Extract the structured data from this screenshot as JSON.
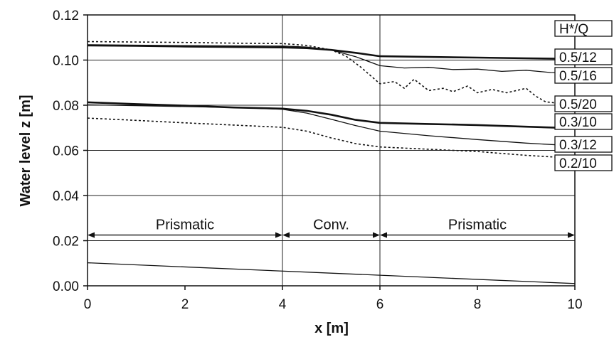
{
  "chart_data": {
    "type": "line",
    "title": "",
    "xlabel": "x [m]",
    "ylabel": "Water level z [m]",
    "xlim": [
      0,
      10
    ],
    "ylim": [
      0,
      0.12
    ],
    "x_ticks": [
      "0",
      "2",
      "4",
      "6",
      "8",
      "10"
    ],
    "y_ticks": [
      "0.00",
      "0.02",
      "0.04",
      "0.06",
      "0.08",
      "0.10",
      "0.12"
    ],
    "x_tick_values": [
      0,
      2,
      4,
      6,
      8,
      10
    ],
    "y_tick_values": [
      0,
      0.02,
      0.04,
      0.06,
      0.08,
      0.1,
      0.12
    ],
    "grid": "horizontal",
    "vertical_lines_x": [
      4,
      6
    ],
    "legend_title": "H*/Q",
    "legend_placement": "right",
    "regions": [
      {
        "label": "Prismatic",
        "x_start": 0,
        "x_end": 4,
        "y": 0.0225
      },
      {
        "label": "Conv.",
        "x_start": 4,
        "x_end": 6,
        "y": 0.0225
      },
      {
        "label": "Prismatic",
        "x_start": 6,
        "x_end": 10,
        "y": 0.0225
      }
    ],
    "series": [
      {
        "name": "0.5/12",
        "style": "solid-bold",
        "points": [
          [
            0,
            0.1065
          ],
          [
            1,
            0.1063
          ],
          [
            2,
            0.106
          ],
          [
            3,
            0.1058
          ],
          [
            4,
            0.1056
          ],
          [
            4.5,
            0.1053
          ],
          [
            5,
            0.1045
          ],
          [
            5.5,
            0.1032
          ],
          [
            6,
            0.1017
          ],
          [
            7,
            0.1014
          ],
          [
            8,
            0.1011
          ],
          [
            9,
            0.1008
          ],
          [
            10,
            0.1005
          ]
        ]
      },
      {
        "name": "0.5/16",
        "style": "solid",
        "points": [
          [
            0,
            0.1068
          ],
          [
            1,
            0.1066
          ],
          [
            2,
            0.1064
          ],
          [
            3,
            0.1063
          ],
          [
            4,
            0.1062
          ],
          [
            4.5,
            0.1058
          ],
          [
            5,
            0.1045
          ],
          [
            5.5,
            0.1015
          ],
          [
            6,
            0.0975
          ],
          [
            6.5,
            0.0965
          ],
          [
            7,
            0.0968
          ],
          [
            7.5,
            0.0958
          ],
          [
            8,
            0.096
          ],
          [
            8.5,
            0.095
          ],
          [
            9,
            0.0955
          ],
          [
            9.5,
            0.0945
          ],
          [
            10,
            0.0943
          ]
        ]
      },
      {
        "name": "0.5/20",
        "style": "dashed",
        "points": [
          [
            0,
            0.1082
          ],
          [
            1,
            0.108
          ],
          [
            2,
            0.1078
          ],
          [
            3,
            0.1075
          ],
          [
            4,
            0.1073
          ],
          [
            4.5,
            0.1065
          ],
          [
            5,
            0.1045
          ],
          [
            5.3,
            0.1018
          ],
          [
            5.6,
            0.097
          ],
          [
            6,
            0.0895
          ],
          [
            6.3,
            0.0905
          ],
          [
            6.5,
            0.0875
          ],
          [
            6.7,
            0.0915
          ],
          [
            7,
            0.0865
          ],
          [
            7.3,
            0.0875
          ],
          [
            7.5,
            0.086
          ],
          [
            7.8,
            0.0885
          ],
          [
            8,
            0.0855
          ],
          [
            8.3,
            0.087
          ],
          [
            8.6,
            0.0855
          ],
          [
            9,
            0.0875
          ],
          [
            9.2,
            0.084
          ],
          [
            9.4,
            0.0815
          ],
          [
            9.7,
            0.0808
          ],
          [
            10,
            0.081
          ]
        ]
      },
      {
        "name": "0.3/10",
        "style": "solid-bold",
        "points": [
          [
            0,
            0.0813
          ],
          [
            1,
            0.0805
          ],
          [
            2,
            0.0798
          ],
          [
            3,
            0.079
          ],
          [
            4,
            0.0785
          ],
          [
            4.5,
            0.0775
          ],
          [
            5,
            0.0758
          ],
          [
            5.5,
            0.0735
          ],
          [
            6,
            0.0722
          ],
          [
            7,
            0.0717
          ],
          [
            8,
            0.0712
          ],
          [
            9,
            0.0705
          ],
          [
            10,
            0.0698
          ]
        ]
      },
      {
        "name": "0.3/12",
        "style": "solid",
        "points": [
          [
            0,
            0.0802
          ],
          [
            1,
            0.0798
          ],
          [
            2,
            0.0794
          ],
          [
            3,
            0.079
          ],
          [
            4,
            0.0782
          ],
          [
            4.5,
            0.0765
          ],
          [
            5,
            0.0738
          ],
          [
            5.5,
            0.071
          ],
          [
            6,
            0.0685
          ],
          [
            7,
            0.0665
          ],
          [
            8,
            0.0648
          ],
          [
            9,
            0.0632
          ],
          [
            10,
            0.062
          ]
        ]
      },
      {
        "name": "0.2/10",
        "style": "dashed",
        "points": [
          [
            0,
            0.0743
          ],
          [
            1,
            0.0733
          ],
          [
            2,
            0.0722
          ],
          [
            3,
            0.0712
          ],
          [
            4,
            0.0702
          ],
          [
            4.5,
            0.0685
          ],
          [
            5,
            0.0655
          ],
          [
            5.5,
            0.063
          ],
          [
            6,
            0.0615
          ],
          [
            7,
            0.0605
          ],
          [
            8,
            0.0595
          ],
          [
            9,
            0.0578
          ],
          [
            10,
            0.0565
          ]
        ]
      },
      {
        "name": "",
        "style": "solid",
        "points": [
          [
            0,
            0.0102
          ],
          [
            10,
            0.001
          ]
        ]
      }
    ]
  }
}
